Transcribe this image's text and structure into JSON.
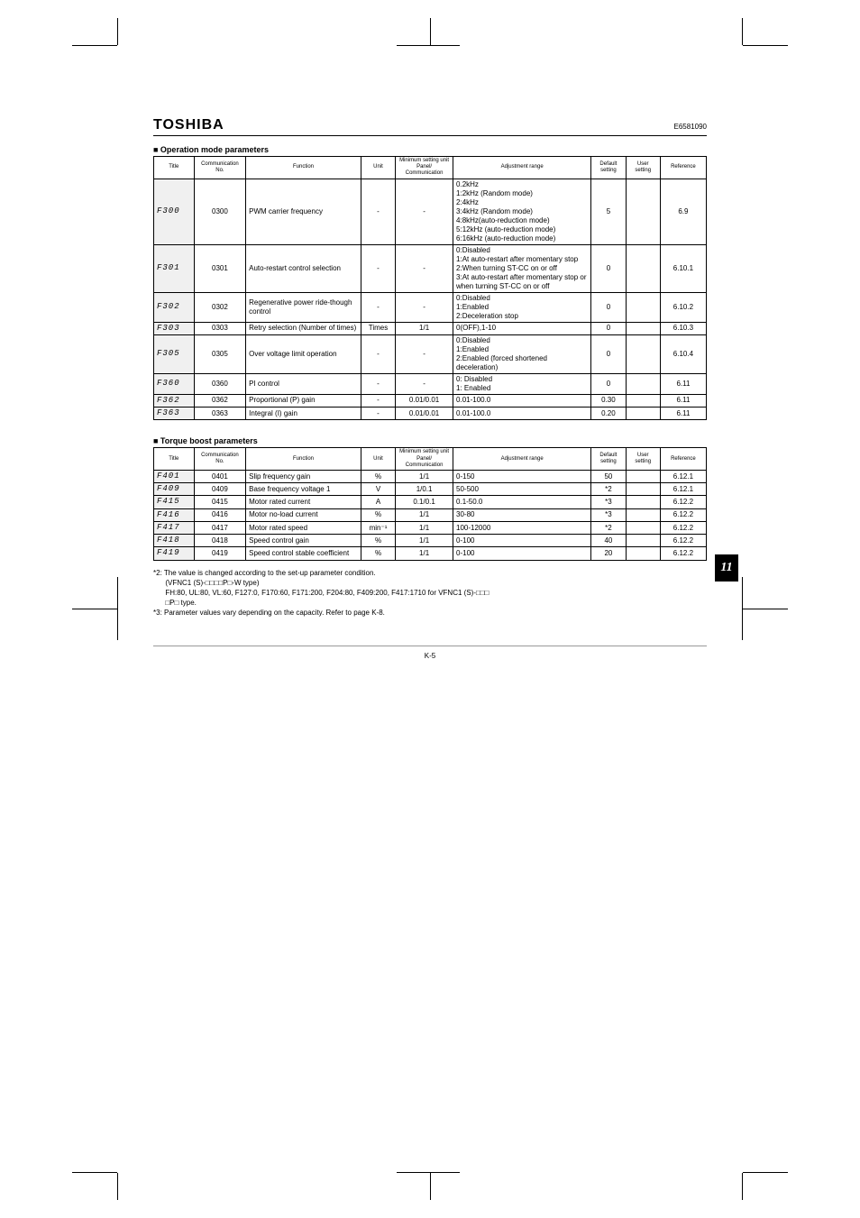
{
  "header": {
    "brand": "TOSHIBA",
    "doc_no": "E6581090"
  },
  "side_tab": "11",
  "page_number": "K-5",
  "section1": {
    "label": "■ Operation mode parameters",
    "headers": [
      "Title",
      "Communication No.",
      "Function",
      "Unit",
      "Minimum setting unit Panel/ Communication",
      "Adjustment range",
      "Default setting",
      "User setting",
      "Reference"
    ],
    "rows": [
      {
        "title": "F300",
        "comm": "0300",
        "func": "PWM carrier frequency",
        "unit": "-",
        "min": "-",
        "adj": "0.2kHz\n1:2kHz (Random mode)\n2:4kHz\n3:4kHz (Random mode)\n4:8kHz(auto-reduction mode)\n5:12kHz (auto-reduction mode)\n6:16kHz (auto-reduction mode)",
        "def": "5",
        "user": "",
        "ref": "6.9"
      },
      {
        "title": "F301",
        "comm": "0301",
        "func": "Auto-restart control selection",
        "unit": "-",
        "min": "-",
        "adj": "0:Disabled\n1:At auto-restart after momentary stop\n2:When turning ST-CC on or off\n3:At auto-restart after momentary stop or when turning ST-CC on or off",
        "def": "0",
        "user": "",
        "ref": "6.10.1"
      },
      {
        "title": "F302",
        "comm": "0302",
        "func": "Regenerative power ride-though control",
        "unit": "-",
        "min": "-",
        "adj": "0:Disabled\n1:Enabled\n2:Deceleration stop",
        "def": "0",
        "user": "",
        "ref": "6.10.2"
      },
      {
        "title": "F303",
        "comm": "0303",
        "func": "Retry selection (Number of times)",
        "unit": "Times",
        "min": "1/1",
        "adj": "0(OFF),1-10",
        "def": "0",
        "user": "",
        "ref": "6.10.3"
      },
      {
        "title": "F305",
        "comm": "0305",
        "func": "Over voltage limit operation",
        "unit": "-",
        "min": "-",
        "adj": "0:Disabled\n1:Enabled\n2:Enabled (forced shortened deceleration)",
        "def": "0",
        "user": "",
        "ref": "6.10.4"
      },
      {
        "title": "F360",
        "comm": "0360",
        "func": "PI control",
        "unit": "-",
        "min": "-",
        "adj": "0: Disabled\n1: Enabled",
        "def": "0",
        "user": "",
        "ref": "6.11"
      },
      {
        "title": "F362",
        "comm": "0362",
        "func": "Proportional (P) gain",
        "unit": "-",
        "min": "0.01/0.01",
        "adj": "0.01-100.0",
        "def": "0.30",
        "user": "",
        "ref": "6.11"
      },
      {
        "title": "F363",
        "comm": "0363",
        "func": "Integral (I) gain",
        "unit": "-",
        "min": "0.01/0.01",
        "adj": "0.01-100.0",
        "def": "0.20",
        "user": "",
        "ref": "6.11"
      }
    ]
  },
  "section2": {
    "label": "■ Torque boost parameters",
    "headers": [
      "Title",
      "Communication No.",
      "Function",
      "Unit",
      "Minimum setting unit Panel/ Communication",
      "Adjustment range",
      "Default setting",
      "User setting",
      "Reference"
    ],
    "rows": [
      {
        "title": "F401",
        "comm": "0401",
        "func": "Slip frequency gain",
        "unit": "%",
        "min": "1/1",
        "adj": "0-150",
        "def": "50",
        "user": "",
        "ref": "6.12.1"
      },
      {
        "title": "F409",
        "comm": "0409",
        "func": "Base frequency voltage 1",
        "unit": "V",
        "min": "1/0.1",
        "adj": "50-500",
        "def": "*2",
        "user": "",
        "ref": "6.12.1"
      },
      {
        "title": "F415",
        "comm": "0415",
        "func": "Motor rated current",
        "unit": "A",
        "min": "0.1/0.1",
        "adj": "0.1-50.0",
        "def": "*3",
        "user": "",
        "ref": "6.12.2"
      },
      {
        "title": "F416",
        "comm": "0416",
        "func": "Motor no-load current",
        "unit": "%",
        "min": "1/1",
        "adj": "30-80",
        "def": "*3",
        "user": "",
        "ref": "6.12.2"
      },
      {
        "title": "F417",
        "comm": "0417",
        "func": "Motor rated speed",
        "unit": "min⁻¹",
        "min": "1/1",
        "adj": "100-12000",
        "def": "*2",
        "user": "",
        "ref": "6.12.2"
      },
      {
        "title": "F418",
        "comm": "0418",
        "func": "Speed control gain",
        "unit": "%",
        "min": "1/1",
        "adj": "0-100",
        "def": "40",
        "user": "",
        "ref": "6.12.2"
      },
      {
        "title": "F419",
        "comm": "0419",
        "func": "Speed control stable coefficient",
        "unit": "%",
        "min": "1/1",
        "adj": "0-100",
        "def": "20",
        "user": "",
        "ref": "6.12.2"
      }
    ]
  },
  "footnotes": [
    "*2: The value is changed according to the set-up parameter condition.",
    "      (VFNC1 (S)-□□□□P□-W type)",
    "      FH:80, UL:80, VL:60, F127:0, F170:60, F171:200, F204:80, F409:200, F417:1710 for VFNC1 (S)-□□□",
    "      □P□ type.",
    "*3: Parameter values vary depending on the capacity.    Refer to page K-8."
  ]
}
